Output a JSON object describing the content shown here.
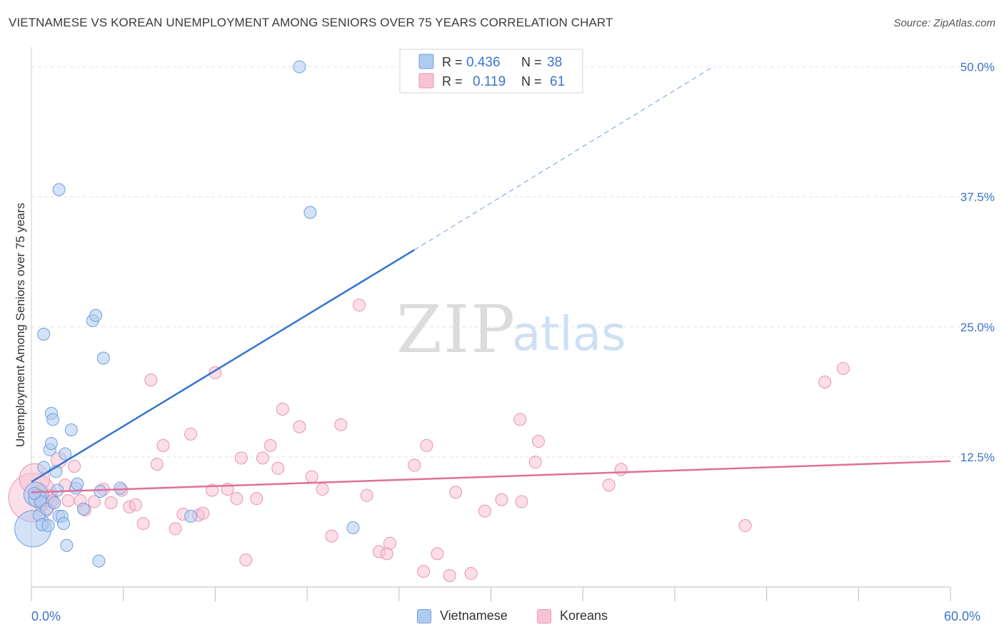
{
  "header": {
    "title": "VIETNAMESE VS KOREAN UNEMPLOYMENT AMONG SENIORS OVER 75 YEARS CORRELATION CHART",
    "source": "Source: ZipAtlas.com"
  },
  "watermark": {
    "zip": "ZIP",
    "atlas": "atlas"
  },
  "legend_top": {
    "rows": [
      {
        "r_label": "R =",
        "r_value": "0.436",
        "n_label": "N =",
        "n_value": "38"
      },
      {
        "r_label": "R =",
        "r_value": "0.119",
        "n_label": "N =",
        "n_value": "61"
      }
    ]
  },
  "legend_bottom": {
    "items": [
      "Vietnamese",
      "Koreans"
    ]
  },
  "colors": {
    "viet_fill": "#aecbf0",
    "viet_stroke": "#6f9fdc",
    "viet_line": "#3474cf",
    "kor_fill": "#f7c3d3",
    "kor_stroke": "#e993b0",
    "kor_line": "#e0709a",
    "axis_label": "#3b74c9",
    "grid": "#e3e3e3"
  },
  "chart_data": {
    "type": "scatter",
    "title": "VIETNAMESE VS KOREAN UNEMPLOYMENT AMONG SENIORS OVER 75 YEARS CORRELATION CHART",
    "xlabel": "",
    "ylabel": "Unemployment Among Seniors over 75 years",
    "xlim": [
      0,
      60
    ],
    "ylim": [
      0,
      51
    ],
    "x_tick_labels": [
      {
        "value": 0,
        "label": "0.0%"
      },
      {
        "value": 60,
        "label": "60.0%"
      }
    ],
    "y_tick_labels": [
      {
        "value": 12.5,
        "label": "12.5%"
      },
      {
        "value": 25,
        "label": "25.0%"
      },
      {
        "value": 37.5,
        "label": "37.5%"
      },
      {
        "value": 50,
        "label": "50.0%"
      }
    ],
    "x_minor_ticks": [
      0,
      6,
      12,
      18,
      24,
      30,
      36,
      42,
      48,
      54,
      60
    ],
    "grid": true,
    "series": [
      {
        "name": "Vietnamese",
        "r": 0.436,
        "n": 38,
        "points": [
          [
            0.1,
            5.6,
            3
          ],
          [
            0.3,
            8.9,
            2
          ],
          [
            0.4,
            8.5,
            1.5
          ],
          [
            0.5,
            6.9,
            1
          ],
          [
            0.6,
            8.2,
            1
          ],
          [
            0.7,
            6.0,
            1
          ],
          [
            0.8,
            11.5,
            1
          ],
          [
            0.8,
            24.3,
            1
          ],
          [
            1.0,
            7.5,
            1
          ],
          [
            1.1,
            5.9,
            1
          ],
          [
            1.2,
            13.2,
            1
          ],
          [
            1.3,
            16.7,
            1
          ],
          [
            1.3,
            13.8,
            1
          ],
          [
            1.4,
            16.1,
            1
          ],
          [
            1.5,
            8.1,
            1
          ],
          [
            1.6,
            11.1,
            1
          ],
          [
            1.7,
            9.3,
            1
          ],
          [
            1.8,
            6.8,
            1
          ],
          [
            1.8,
            38.2,
            1
          ],
          [
            2.0,
            6.8,
            1
          ],
          [
            2.1,
            6.1,
            1
          ],
          [
            2.2,
            12.8,
            1
          ],
          [
            2.3,
            4.0,
            1
          ],
          [
            2.6,
            15.1,
            1
          ],
          [
            2.9,
            9.5,
            1
          ],
          [
            3.0,
            9.9,
            1
          ],
          [
            3.4,
            7.5,
            1
          ],
          [
            4.0,
            25.6,
            1
          ],
          [
            4.2,
            26.1,
            1
          ],
          [
            4.4,
            2.5,
            1
          ],
          [
            4.5,
            9.2,
            1
          ],
          [
            4.7,
            22.0,
            1
          ],
          [
            5.8,
            9.5,
            1
          ],
          [
            10.4,
            6.8,
            1
          ],
          [
            17.5,
            50.0,
            1
          ],
          [
            18.2,
            36.0,
            1
          ],
          [
            21.0,
            5.7,
            1
          ],
          [
            0.2,
            9.0,
            1
          ]
        ],
        "trend": {
          "x0": 0,
          "y0": 10.1,
          "x1": 25,
          "y1": 32.4,
          "dash_to_x": 44.5,
          "dash_to_y": 50.0
        }
      },
      {
        "name": "Koreans",
        "r": 0.119,
        "n": 61,
        "points": [
          [
            0.1,
            8.6,
            4
          ],
          [
            0.2,
            10.4,
            2.5
          ],
          [
            0.5,
            9.2,
            1
          ],
          [
            0.6,
            7.9,
            1
          ],
          [
            0.8,
            8.0,
            1
          ],
          [
            1.0,
            8.3,
            1
          ],
          [
            1.2,
            8.8,
            1
          ],
          [
            1.4,
            8.3,
            1
          ],
          [
            1.8,
            12.2,
            1.3
          ],
          [
            2.2,
            9.8,
            1
          ],
          [
            2.4,
            8.3,
            1
          ],
          [
            2.8,
            11.6,
            1
          ],
          [
            3.2,
            8.3,
            1
          ],
          [
            3.5,
            7.4,
            1
          ],
          [
            4.1,
            8.2,
            1
          ],
          [
            4.7,
            9.4,
            1
          ],
          [
            5.2,
            8.1,
            1
          ],
          [
            5.9,
            9.3,
            1
          ],
          [
            6.4,
            7.7,
            1
          ],
          [
            6.8,
            7.9,
            1
          ],
          [
            7.3,
            6.1,
            1
          ],
          [
            7.8,
            19.9,
            1
          ],
          [
            8.2,
            11.8,
            1
          ],
          [
            8.6,
            13.6,
            1
          ],
          [
            9.4,
            5.6,
            1
          ],
          [
            9.9,
            7.0,
            1
          ],
          [
            10.4,
            14.7,
            1
          ],
          [
            10.9,
            6.9,
            1
          ],
          [
            11.2,
            7.1,
            1
          ],
          [
            11.8,
            9.3,
            1
          ],
          [
            12.0,
            20.6,
            1
          ],
          [
            12.8,
            9.4,
            1
          ],
          [
            13.4,
            8.5,
            1
          ],
          [
            13.7,
            12.4,
            1
          ],
          [
            14.0,
            2.6,
            1
          ],
          [
            14.7,
            8.5,
            1
          ],
          [
            15.1,
            12.4,
            1
          ],
          [
            15.6,
            13.6,
            1
          ],
          [
            16.1,
            11.4,
            1
          ],
          [
            16.4,
            17.1,
            1
          ],
          [
            17.5,
            15.4,
            1
          ],
          [
            18.3,
            10.6,
            1
          ],
          [
            19.0,
            9.4,
            1
          ],
          [
            19.6,
            4.9,
            1
          ],
          [
            20.2,
            15.6,
            1
          ],
          [
            21.4,
            27.1,
            1
          ],
          [
            21.9,
            8.8,
            1
          ],
          [
            22.7,
            3.4,
            1
          ],
          [
            23.2,
            3.2,
            1
          ],
          [
            23.4,
            4.2,
            1
          ],
          [
            25.0,
            11.7,
            1
          ],
          [
            25.6,
            1.5,
            1
          ],
          [
            25.8,
            13.6,
            1
          ],
          [
            26.5,
            3.2,
            1
          ],
          [
            27.3,
            1.1,
            1
          ],
          [
            27.7,
            9.1,
            1
          ],
          [
            28.7,
            1.3,
            1
          ],
          [
            29.6,
            7.3,
            1
          ],
          [
            30.7,
            8.4,
            1
          ],
          [
            31.9,
            16.1,
            1
          ],
          [
            32.0,
            8.2,
            1
          ]
        ],
        "extra_points": [
          [
            32.9,
            12.0,
            1
          ],
          [
            33.1,
            14.0,
            1
          ],
          [
            37.7,
            9.8,
            1
          ],
          [
            38.5,
            11.3,
            1
          ],
          [
            46.6,
            5.9,
            1
          ],
          [
            51.8,
            19.7,
            1
          ],
          [
            53.0,
            21.0,
            1
          ]
        ],
        "trend": {
          "x0": 0,
          "y0": 9.1,
          "x1": 60,
          "y1": 12.1
        }
      }
    ]
  }
}
